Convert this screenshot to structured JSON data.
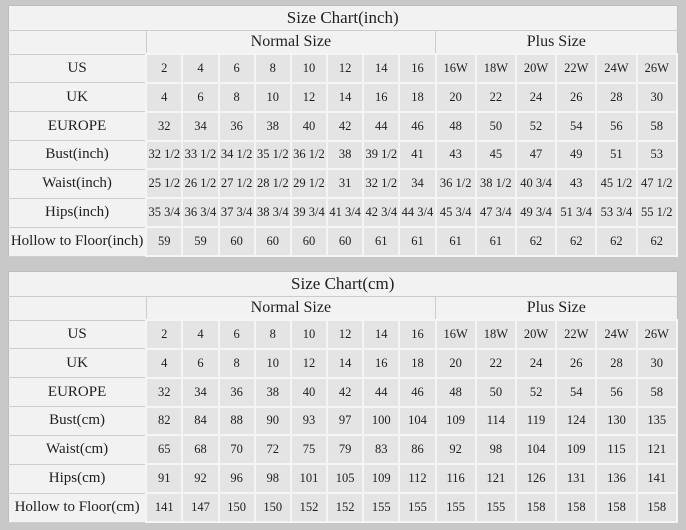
{
  "colors": {
    "page_background": "#c8c8c8",
    "table_background": "#f2f2f2",
    "data_cell_background": "#e4e4e4",
    "light_separator": "#f5f5f5",
    "gray_separator": "#cfcfcf",
    "text": "#1f1f1f"
  },
  "tables": [
    {
      "title": "Size Chart(inch)",
      "group_headers": {
        "normal": "Normal Size",
        "plus": "Plus Size"
      },
      "rows": [
        {
          "label": "US",
          "normal": [
            "2",
            "4",
            "6",
            "8",
            "10",
            "12",
            "14",
            "16"
          ],
          "plus": [
            "16W",
            "18W",
            "20W",
            "22W",
            "24W",
            "26W"
          ]
        },
        {
          "label": "UK",
          "normal": [
            "4",
            "6",
            "8",
            "10",
            "12",
            "14",
            "16",
            "18"
          ],
          "plus": [
            "20",
            "22",
            "24",
            "26",
            "28",
            "30"
          ]
        },
        {
          "label": "EUROPE",
          "normal": [
            "32",
            "34",
            "36",
            "38",
            "40",
            "42",
            "44",
            "46"
          ],
          "plus": [
            "48",
            "50",
            "52",
            "54",
            "56",
            "58"
          ]
        },
        {
          "label": "Bust(inch)",
          "normal": [
            "32 1/2",
            "33 1/2",
            "34 1/2",
            "35 1/2",
            "36 1/2",
            "38",
            "39 1/2",
            "41"
          ],
          "plus": [
            "43",
            "45",
            "47",
            "49",
            "51",
            "53"
          ]
        },
        {
          "label": "Waist(inch)",
          "normal": [
            "25 1/2",
            "26 1/2",
            "27 1/2",
            "28 1/2",
            "29 1/2",
            "31",
            "32 1/2",
            "34"
          ],
          "plus": [
            "36 1/2",
            "38 1/2",
            "40 3/4",
            "43",
            "45 1/2",
            "47 1/2"
          ]
        },
        {
          "label": "Hips(inch)",
          "normal": [
            "35 3/4",
            "36 3/4",
            "37 3/4",
            "38 3/4",
            "39 3/4",
            "41 3/4",
            "42 3/4",
            "44 3/4"
          ],
          "plus": [
            "45 3/4",
            "47 3/4",
            "49 3/4",
            "51 3/4",
            "53 3/4",
            "55 1/2"
          ]
        },
        {
          "label": "Hollow to Floor(inch)",
          "normal": [
            "59",
            "59",
            "60",
            "60",
            "60",
            "60",
            "61",
            "61"
          ],
          "plus": [
            "61",
            "61",
            "62",
            "62",
            "62",
            "62"
          ]
        }
      ]
    },
    {
      "title": "Size Chart(cm)",
      "group_headers": {
        "normal": "Normal Size",
        "plus": "Plus Size"
      },
      "rows": [
        {
          "label": "US",
          "normal": [
            "2",
            "4",
            "6",
            "8",
            "10",
            "12",
            "14",
            "16"
          ],
          "plus": [
            "16W",
            "18W",
            "20W",
            "22W",
            "24W",
            "26W"
          ]
        },
        {
          "label": "UK",
          "normal": [
            "4",
            "6",
            "8",
            "10",
            "12",
            "14",
            "16",
            "18"
          ],
          "plus": [
            "20",
            "22",
            "24",
            "26",
            "28",
            "30"
          ]
        },
        {
          "label": "EUROPE",
          "normal": [
            "32",
            "34",
            "36",
            "38",
            "40",
            "42",
            "44",
            "46"
          ],
          "plus": [
            "48",
            "50",
            "52",
            "54",
            "56",
            "58"
          ]
        },
        {
          "label": "Bust(cm)",
          "normal": [
            "82",
            "84",
            "88",
            "90",
            "93",
            "97",
            "100",
            "104"
          ],
          "plus": [
            "109",
            "114",
            "119",
            "124",
            "130",
            "135"
          ]
        },
        {
          "label": "Waist(cm)",
          "normal": [
            "65",
            "68",
            "70",
            "72",
            "75",
            "79",
            "83",
            "86"
          ],
          "plus": [
            "92",
            "98",
            "104",
            "109",
            "115",
            "121"
          ]
        },
        {
          "label": "Hips(cm)",
          "normal": [
            "91",
            "92",
            "96",
            "98",
            "101",
            "105",
            "109",
            "112"
          ],
          "plus": [
            "116",
            "121",
            "126",
            "131",
            "136",
            "141"
          ]
        },
        {
          "label": "Hollow to Floor(cm)",
          "normal": [
            "141",
            "147",
            "150",
            "150",
            "152",
            "152",
            "155",
            "155"
          ],
          "plus": [
            "155",
            "155",
            "158",
            "158",
            "158",
            "158"
          ]
        }
      ]
    }
  ]
}
